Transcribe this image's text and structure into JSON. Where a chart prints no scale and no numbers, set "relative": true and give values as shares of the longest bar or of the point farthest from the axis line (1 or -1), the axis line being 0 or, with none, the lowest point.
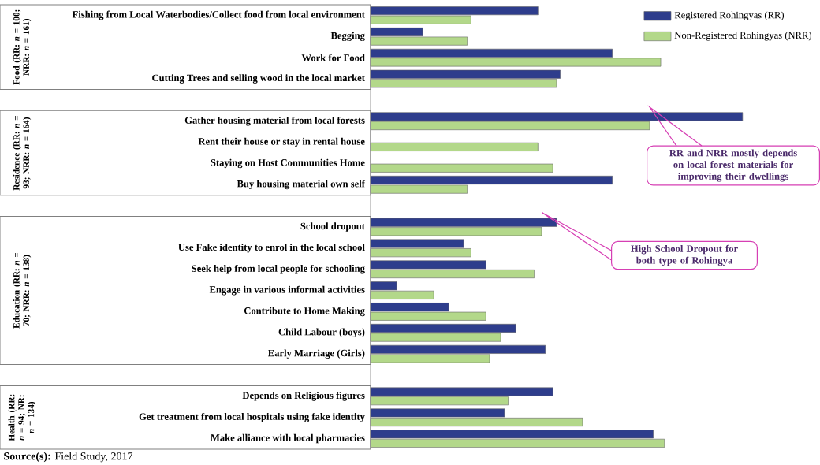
{
  "chart_data": {
    "type": "bar",
    "orientation": "horizontal",
    "relative": true,
    "legend": "top right",
    "categories": [
      "Fishing from Local Waterbodies/Collect food from local environment",
      "Begging",
      "Work for Food",
      "Cutting Trees and selling wood in the local market",
      null,
      "Gather housing material from local forests",
      "Rent their house or stay in rental house",
      "Staying on Host Communities Home",
      "Buy housing material own self",
      null,
      "School dropout",
      "Use Fake identity to enrol in the local school",
      "Seek help from local people for schooling",
      "Engage in various informal activities",
      "Contribute to Home Making",
      "Child Labour (boys)",
      "Early Marriage (Girls)",
      null,
      "Depends on Religious figures",
      "Get treatment from local hospitals using fake identity",
      "Make alliance with local pharmacies"
    ],
    "series": [
      {
        "name": "Registered Rohingyas (RR)",
        "color": "#2e3d8c",
        "values": [
          0.45,
          0.14,
          0.65,
          0.51,
          null,
          1,
          null,
          null,
          0.65,
          null,
          0.5,
          0.25,
          0.31,
          0.07,
          0.21,
          0.39,
          0.47,
          null,
          0.49,
          0.36,
          0.76
        ]
      },
      {
        "name": "Non-Registered Rohingyas (NRR)",
        "color": "#b3d88a",
        "values": [
          0.27,
          0.26,
          0.78,
          0.5,
          null,
          0.75,
          0.45,
          0.49,
          0.26,
          null,
          0.46,
          0.27,
          0.44,
          0.17,
          0.31,
          0.35,
          0.32,
          null,
          0.37,
          0.57,
          0.79
        ]
      }
    ],
    "annotations": [
      "Food (RR: *n* = 100; NRR: *n* = 161)",
      "Residence (RR: *n* = 93; NRR: *n* = 164)",
      "Education (RR: *n* = 70; NRR: *n* = 138)",
      "Health (RR: *n* = 94; NR: *n* = 134)",
      "RR and NRR mostly depends on local forest materials for improving their dwellings",
      "High School Dropout for both type of Rohingya",
      "**Source(s):** Field Study, 2017"
    ]
  }
}
